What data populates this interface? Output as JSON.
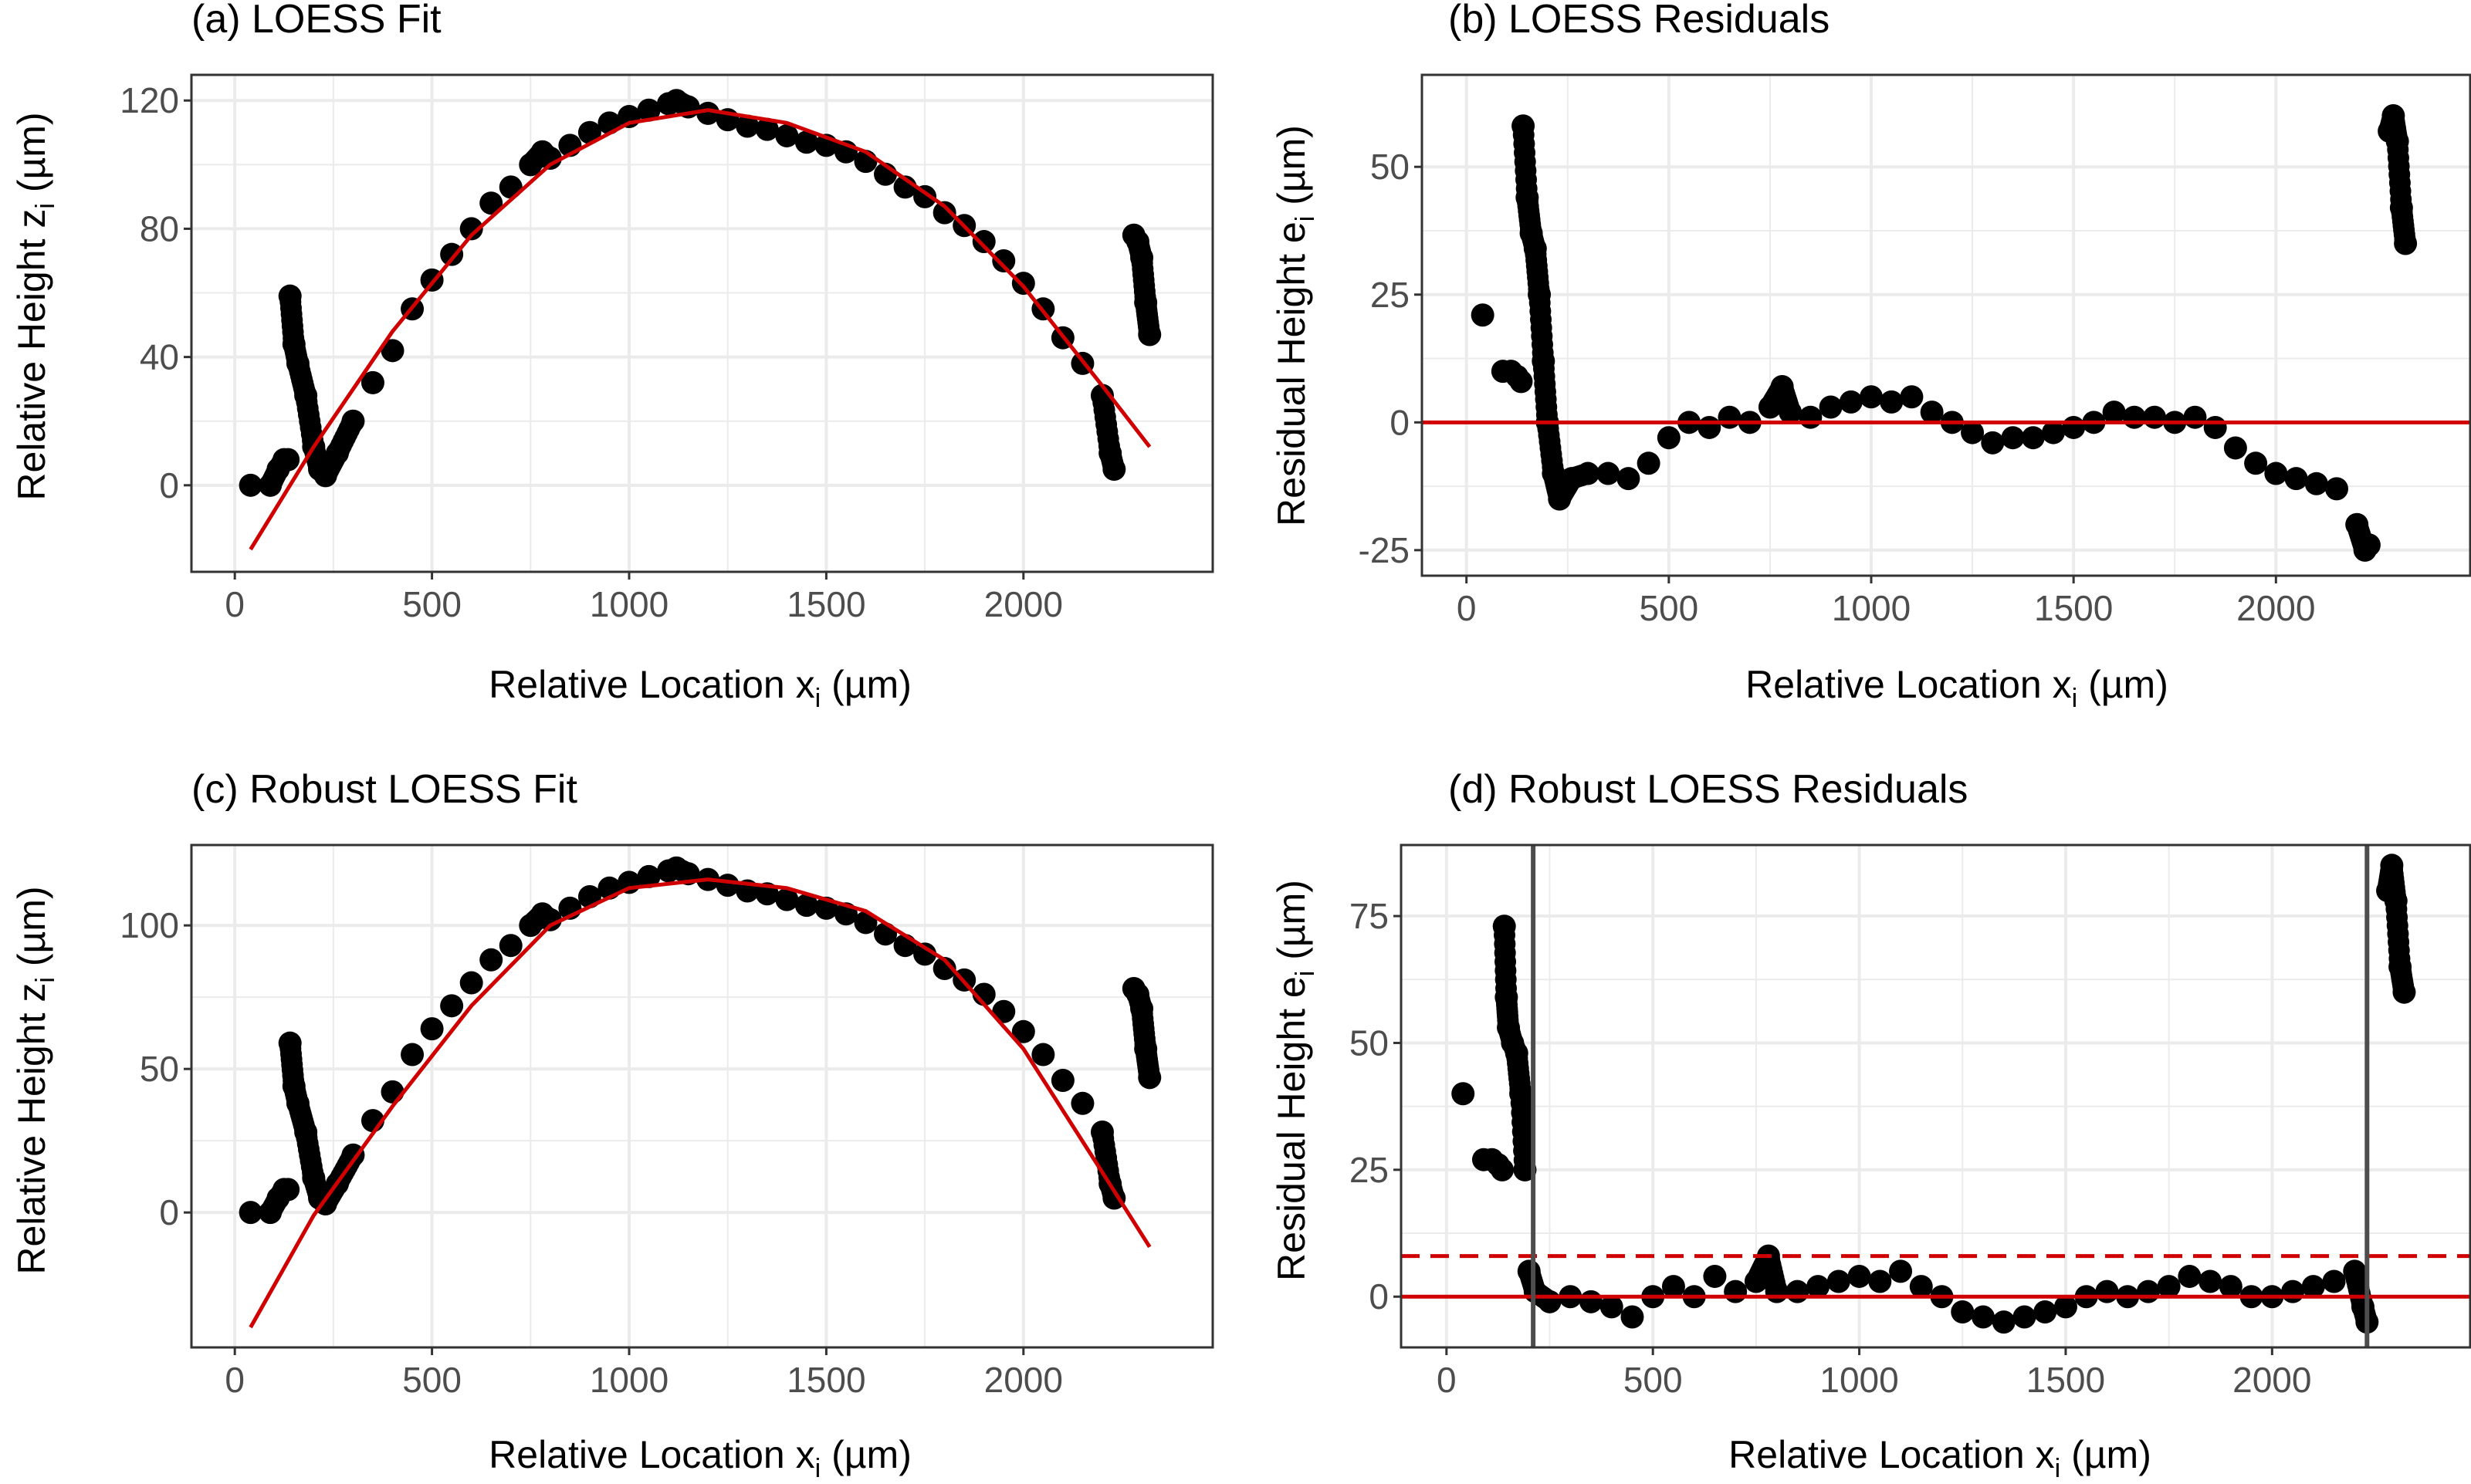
{
  "colors": {
    "fit_line": "#d10000",
    "points": "#000000",
    "grid": "#ebebeb",
    "border": "#333333",
    "tick_text": "#4d4d4d",
    "cutoff_line": "#4d4d4d"
  },
  "chart_data": [
    {
      "id": "a",
      "type": "scatter",
      "title": "(a) LOESS Fit",
      "xlabel": "Relative Location x",
      "xlabel_sub": "i",
      "xlabel_unit": " (µm)",
      "ylabel": "Relative Height z",
      "ylabel_sub": "i",
      "ylabel_unit": " (µm)",
      "xlim": [
        -110,
        2480
      ],
      "ylim": [
        -27,
        128
      ],
      "xticks": [
        0,
        500,
        1000,
        1500,
        2000
      ],
      "yticks": [
        0,
        40,
        80,
        120
      ],
      "series": [
        {
          "name": "observed",
          "kind": "points",
          "x": [
            40,
            90,
            110,
            125,
            135,
            140,
            150,
            160,
            180,
            200,
            215,
            230,
            260,
            300,
            350,
            400,
            450,
            500,
            550,
            600,
            650,
            700,
            750,
            780,
            800,
            850,
            900,
            950,
            1000,
            1050,
            1100,
            1120,
            1150,
            1200,
            1250,
            1300,
            1350,
            1400,
            1450,
            1500,
            1550,
            1600,
            1650,
            1700,
            1750,
            1800,
            1850,
            1900,
            1950,
            2000,
            2050,
            2100,
            2150,
            2200,
            2220,
            2230,
            2280,
            2290,
            2300,
            2310,
            2320
          ],
          "y": [
            0,
            0,
            5,
            8,
            8,
            59,
            44,
            38,
            28,
            12,
            5,
            3,
            10,
            20,
            32,
            42,
            55,
            64,
            72,
            80,
            88,
            93,
            100,
            104,
            102,
            106,
            110,
            113,
            115,
            117,
            119,
            120,
            118,
            116,
            114,
            112,
            111,
            109,
            107,
            106,
            104,
            101,
            97,
            93,
            90,
            85,
            81,
            76,
            70,
            63,
            55,
            46,
            38,
            28,
            10,
            5,
            78,
            76,
            71,
            57,
            47
          ]
        },
        {
          "name": "LOESS fit",
          "kind": "line",
          "x": [
            40,
            200,
            400,
            600,
            800,
            1000,
            1200,
            1400,
            1600,
            1800,
            2000,
            2200,
            2320
          ],
          "y": [
            -20,
            12,
            48,
            78,
            100,
            113,
            117,
            113,
            104,
            87,
            62,
            31,
            12
          ]
        }
      ]
    },
    {
      "id": "b",
      "type": "scatter",
      "title": "(b) LOESS Residuals",
      "xlabel": "Relative Location x",
      "xlabel_sub": "i",
      "xlabel_unit": " (µm)",
      "ylabel": "Residual Height e",
      "ylabel_sub": "i",
      "ylabel_unit": " (µm)",
      "xlim": [
        -110,
        2480
      ],
      "ylim": [
        -30,
        68
      ],
      "xticks": [
        0,
        500,
        1000,
        1500,
        2000
      ],
      "yticks": [
        -25,
        0,
        25,
        50
      ],
      "series": [
        {
          "name": "residuals",
          "kind": "points",
          "x": [
            40,
            90,
            110,
            125,
            135,
            140,
            150,
            160,
            170,
            180,
            190,
            200,
            215,
            230,
            260,
            300,
            350,
            400,
            450,
            500,
            550,
            600,
            650,
            700,
            750,
            780,
            800,
            850,
            900,
            950,
            1000,
            1050,
            1100,
            1150,
            1200,
            1250,
            1300,
            1350,
            1400,
            1450,
            1500,
            1550,
            1600,
            1650,
            1700,
            1750,
            1800,
            1850,
            1900,
            1950,
            2000,
            2050,
            2100,
            2150,
            2200,
            2220,
            2230,
            2280,
            2290,
            2300,
            2310,
            2320
          ],
          "y": [
            21,
            10,
            10,
            9,
            8,
            58,
            44,
            37,
            34,
            25,
            12,
            0,
            -10,
            -15,
            -11,
            -10,
            -10,
            -11,
            -8,
            -3,
            0,
            -1,
            1,
            0,
            3,
            7,
            2,
            1,
            3,
            4,
            5,
            4,
            5,
            2,
            0,
            -2,
            -4,
            -3,
            -3,
            -2,
            -1,
            0,
            2,
            1,
            1,
            0,
            1,
            -1,
            -5,
            -8,
            -10,
            -11,
            -12,
            -13,
            -20,
            -25,
            -24,
            57,
            60,
            55,
            42,
            35
          ]
        },
        {
          "name": "zero",
          "kind": "hline",
          "y": 0
        }
      ]
    },
    {
      "id": "c",
      "type": "scatter",
      "title": "(c) Robust LOESS Fit",
      "xlabel": "Relative Location x",
      "xlabel_sub": "i",
      "xlabel_unit": " (µm)",
      "ylabel": "Relative Height z",
      "ylabel_sub": "i",
      "ylabel_unit": " (µm)",
      "xlim": [
        -110,
        2480
      ],
      "ylim": [
        -47,
        128
      ],
      "xticks": [
        0,
        500,
        1000,
        1500,
        2000
      ],
      "yticks": [
        0,
        50,
        100
      ],
      "series": [
        {
          "name": "observed",
          "kind": "points",
          "x": [
            40,
            90,
            110,
            125,
            135,
            140,
            150,
            160,
            180,
            200,
            215,
            230,
            260,
            300,
            350,
            400,
            450,
            500,
            550,
            600,
            650,
            700,
            750,
            780,
            800,
            850,
            900,
            950,
            1000,
            1050,
            1100,
            1120,
            1150,
            1200,
            1250,
            1300,
            1350,
            1400,
            1450,
            1500,
            1550,
            1600,
            1650,
            1700,
            1750,
            1800,
            1850,
            1900,
            1950,
            2000,
            2050,
            2100,
            2150,
            2200,
            2220,
            2230,
            2280,
            2290,
            2300,
            2310,
            2320
          ],
          "y": [
            0,
            0,
            5,
            8,
            8,
            59,
            44,
            38,
            28,
            12,
            5,
            3,
            10,
            20,
            32,
            42,
            55,
            64,
            72,
            80,
            88,
            93,
            100,
            104,
            102,
            106,
            110,
            113,
            115,
            117,
            119,
            120,
            118,
            116,
            114,
            112,
            111,
            109,
            107,
            106,
            104,
            101,
            97,
            93,
            90,
            85,
            81,
            76,
            70,
            63,
            55,
            46,
            38,
            28,
            10,
            5,
            78,
            76,
            71,
            57,
            47
          ]
        },
        {
          "name": "robust LOESS fit",
          "kind": "line",
          "x": [
            40,
            200,
            400,
            600,
            800,
            1000,
            1200,
            1400,
            1600,
            1800,
            2000,
            2200,
            2320
          ],
          "y": [
            -40,
            -1,
            37,
            72,
            100,
            113,
            116,
            113,
            105,
            88,
            57,
            14,
            -12
          ]
        }
      ]
    },
    {
      "id": "d",
      "type": "scatter",
      "title": "(d) Robust LOESS Residuals",
      "xlabel": "Relative Location x",
      "xlabel_sub": "i",
      "xlabel_unit": " (µm)",
      "ylabel": "Residual Height e",
      "ylabel_sub": "i",
      "ylabel_unit": " (µm)",
      "xlim": [
        -110,
        2480
      ],
      "ylim": [
        -10,
        89
      ],
      "xticks": [
        0,
        500,
        1000,
        1500,
        2000
      ],
      "yticks": [
        0,
        25,
        50,
        75
      ],
      "series": [
        {
          "name": "residuals",
          "kind": "points",
          "x": [
            40,
            90,
            110,
            125,
            135,
            140,
            145,
            150,
            160,
            170,
            180,
            190,
            200,
            215,
            250,
            300,
            350,
            400,
            450,
            500,
            550,
            600,
            650,
            700,
            750,
            780,
            800,
            850,
            900,
            950,
            1000,
            1050,
            1100,
            1150,
            1200,
            1250,
            1300,
            1350,
            1400,
            1450,
            1500,
            1550,
            1600,
            1650,
            1700,
            1750,
            1800,
            1850,
            1900,
            1950,
            2000,
            2050,
            2100,
            2150,
            2200,
            2220,
            2230,
            2280,
            2290,
            2300,
            2310,
            2320
          ],
          "y": [
            40,
            27,
            27,
            26,
            25,
            73,
            59,
            53,
            50,
            48,
            40,
            25,
            5,
            1,
            -1,
            0,
            -1,
            -2,
            -4,
            0,
            2,
            0,
            4,
            1,
            3,
            8,
            1,
            1,
            2,
            3,
            4,
            3,
            5,
            2,
            0,
            -3,
            -4,
            -5,
            -4,
            -3,
            -2,
            0,
            1,
            0,
            1,
            2,
            4,
            3,
            2,
            0,
            0,
            1,
            2,
            3,
            5,
            -2,
            -5,
            80,
            85,
            78,
            65,
            60
          ]
        },
        {
          "name": "zero",
          "kind": "hline",
          "y": 0
        },
        {
          "name": "threshold",
          "kind": "hline-dashed",
          "y": 8
        },
        {
          "name": "left cutoff",
          "kind": "vline",
          "x": 210
        },
        {
          "name": "right cutoff",
          "kind": "vline",
          "x": 2230
        }
      ]
    }
  ]
}
